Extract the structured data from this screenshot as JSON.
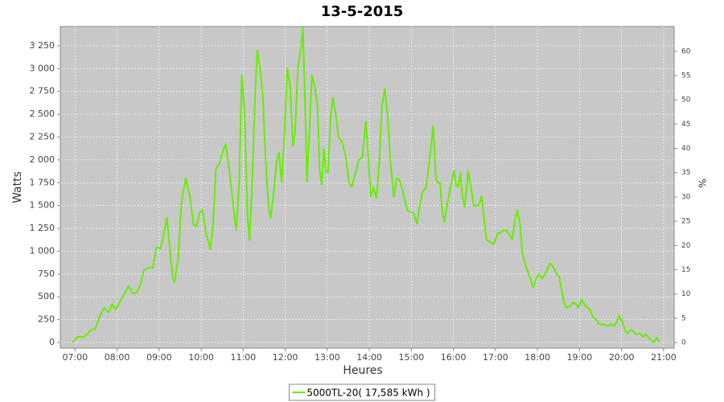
{
  "chart_data": {
    "type": "line",
    "title": "13-5-2015",
    "x_label": "Heures",
    "y_label": "Watts",
    "y2_label": "%",
    "x": [
      "06:57",
      "07:03",
      "07:13",
      "07:22",
      "07:29",
      "07:36",
      "07:42",
      "07:48",
      "07:53",
      "07:58",
      "08:05",
      "08:12",
      "08:16",
      "08:22",
      "08:27",
      "08:33",
      "08:38",
      "08:45",
      "08:51",
      "08:56",
      "09:02",
      "09:07",
      "09:11",
      "09:15",
      "09:19",
      "09:22",
      "09:27",
      "09:32",
      "09:38",
      "09:44",
      "09:49",
      "09:53",
      "09:58",
      "10:02",
      "10:07",
      "10:13",
      "10:17",
      "10:21",
      "10:26",
      "10:32",
      "10:35",
      "10:40",
      "10:45",
      "10:50",
      "10:54",
      "10:58",
      "11:02",
      "11:06",
      "11:09",
      "11:13",
      "11:17",
      "11:20",
      "11:24",
      "11:28",
      "11:32",
      "11:36",
      "11:39",
      "11:43",
      "11:48",
      "11:51",
      "11:55",
      "11:59",
      "12:03",
      "12:07",
      "12:11",
      "12:14",
      "12:18",
      "12:22",
      "12:25",
      "12:28",
      "12:31",
      "12:35",
      "12:38",
      "12:42",
      "12:46",
      "12:49",
      "12:52",
      "12:55",
      "12:58",
      "13:01",
      "13:05",
      "13:08",
      "13:12",
      "13:16",
      "13:21",
      "13:26",
      "13:31",
      "13:35",
      "13:40",
      "13:45",
      "13:50",
      "13:55",
      "13:59",
      "14:02",
      "14:06",
      "14:10",
      "14:14",
      "14:18",
      "14:22",
      "14:26",
      "14:30",
      "14:35",
      "14:39",
      "14:43",
      "14:48",
      "14:54",
      "14:58",
      "15:03",
      "15:08",
      "15:12",
      "15:16",
      "15:21",
      "15:26",
      "15:31",
      "15:35",
      "15:38",
      "15:41",
      "15:44",
      "15:47",
      "15:51",
      "15:56",
      "16:01",
      "16:04",
      "16:07",
      "16:10",
      "16:13",
      "16:16",
      "16:19",
      "16:21",
      "16:25",
      "16:29",
      "16:33",
      "16:36",
      "16:40",
      "16:44",
      "16:47",
      "16:52",
      "16:58",
      "17:03",
      "17:07",
      "17:12",
      "17:16",
      "17:20",
      "17:24",
      "17:28",
      "17:31",
      "17:35",
      "17:38",
      "17:41",
      "17:45",
      "17:50",
      "17:54",
      "17:58",
      "18:02",
      "18:06",
      "18:11",
      "18:18",
      "18:23",
      "18:27",
      "18:31",
      "18:35",
      "18:39",
      "18:42",
      "18:47",
      "18:51",
      "18:55",
      "18:58",
      "19:03",
      "19:08",
      "19:14",
      "19:19",
      "19:24",
      "19:28",
      "19:34",
      "19:40",
      "19:45",
      "19:50",
      "19:57",
      "20:01",
      "20:05",
      "20:09",
      "20:13",
      "20:17",
      "20:21",
      "20:26",
      "20:31",
      "20:35",
      "20:40",
      "20:46",
      "20:50",
      "20:54"
    ],
    "series": [
      {
        "name": "5000TL-20( 17,585 kWh )",
        "color": "#66ee00",
        "values": [
          0,
          60,
          60,
          130,
          150,
          300,
          380,
          330,
          420,
          360,
          460,
          550,
          620,
          540,
          540,
          620,
          790,
          820,
          820,
          1040,
          1030,
          1200,
          1370,
          1050,
          720,
          660,
          900,
          1550,
          1800,
          1600,
          1290,
          1270,
          1420,
          1450,
          1200,
          1020,
          1300,
          1900,
          1960,
          2120,
          2170,
          1900,
          1550,
          1230,
          1700,
          2930,
          2500,
          1400,
          1120,
          1800,
          2700,
          3200,
          3000,
          2700,
          2000,
          1500,
          1360,
          1600,
          2000,
          2080,
          1750,
          2300,
          3000,
          2800,
          2150,
          2300,
          3000,
          3200,
          3450,
          2700,
          1760,
          2400,
          2930,
          2800,
          2600,
          1900,
          1730,
          2120,
          1880,
          1860,
          2500,
          2680,
          2500,
          2250,
          2200,
          2050,
          1750,
          1700,
          1850,
          2000,
          2030,
          2420,
          2000,
          1600,
          1700,
          1580,
          1950,
          2600,
          2780,
          2500,
          2000,
          1600,
          1800,
          1780,
          1650,
          1450,
          1430,
          1420,
          1300,
          1500,
          1650,
          1700,
          2000,
          2370,
          1800,
          1750,
          1750,
          1450,
          1320,
          1500,
          1700,
          1880,
          1720,
          1700,
          1850,
          1600,
          1480,
          1700,
          1880,
          1700,
          1500,
          1500,
          1500,
          1600,
          1350,
          1130,
          1100,
          1080,
          1200,
          1200,
          1230,
          1230,
          1180,
          1130,
          1350,
          1450,
          1300,
          1000,
          900,
          800,
          700,
          600,
          700,
          750,
          700,
          750,
          870,
          820,
          750,
          720,
          550,
          400,
          380,
          400,
          440,
          420,
          380,
          470,
          400,
          370,
          280,
          250,
          200,
          200,
          180,
          200,
          180,
          290,
          230,
          130,
          100,
          140,
          120,
          90,
          100,
          60,
          90,
          40,
          0,
          50,
          0
        ]
      }
    ],
    "xlim": [
      "06:39",
      "21:15"
    ],
    "xticks": [
      "07:00",
      "08:00",
      "09:00",
      "10:00",
      "11:00",
      "12:00",
      "13:00",
      "14:00",
      "15:00",
      "16:00",
      "17:00",
      "18:00",
      "19:00",
      "20:00",
      "21:00"
    ],
    "ylim": [
      -62,
      3461
    ],
    "yticks": [
      0,
      250,
      500,
      750,
      {
        "value": 1000,
        "label": "1 000"
      },
      {
        "value": 1250,
        "label": "1 250"
      },
      {
        "value": 1500,
        "label": "1 500"
      },
      {
        "value": 1750,
        "label": "1 750"
      },
      {
        "value": 2000,
        "label": "2 000"
      },
      {
        "value": 2250,
        "label": "2 250"
      },
      {
        "value": 2500,
        "label": "2 500"
      },
      {
        "value": 2750,
        "label": "2 750"
      },
      {
        "value": 3000,
        "label": "3 000"
      },
      {
        "value": 3250,
        "label": "3 250"
      }
    ],
    "y2lim": [
      -1.16,
      65.1
    ],
    "y2ticks": [
      0,
      5,
      10,
      15,
      20,
      25,
      30,
      35,
      40,
      45,
      50,
      55,
      60
    ],
    "grid": true,
    "legend": "bottom"
  }
}
